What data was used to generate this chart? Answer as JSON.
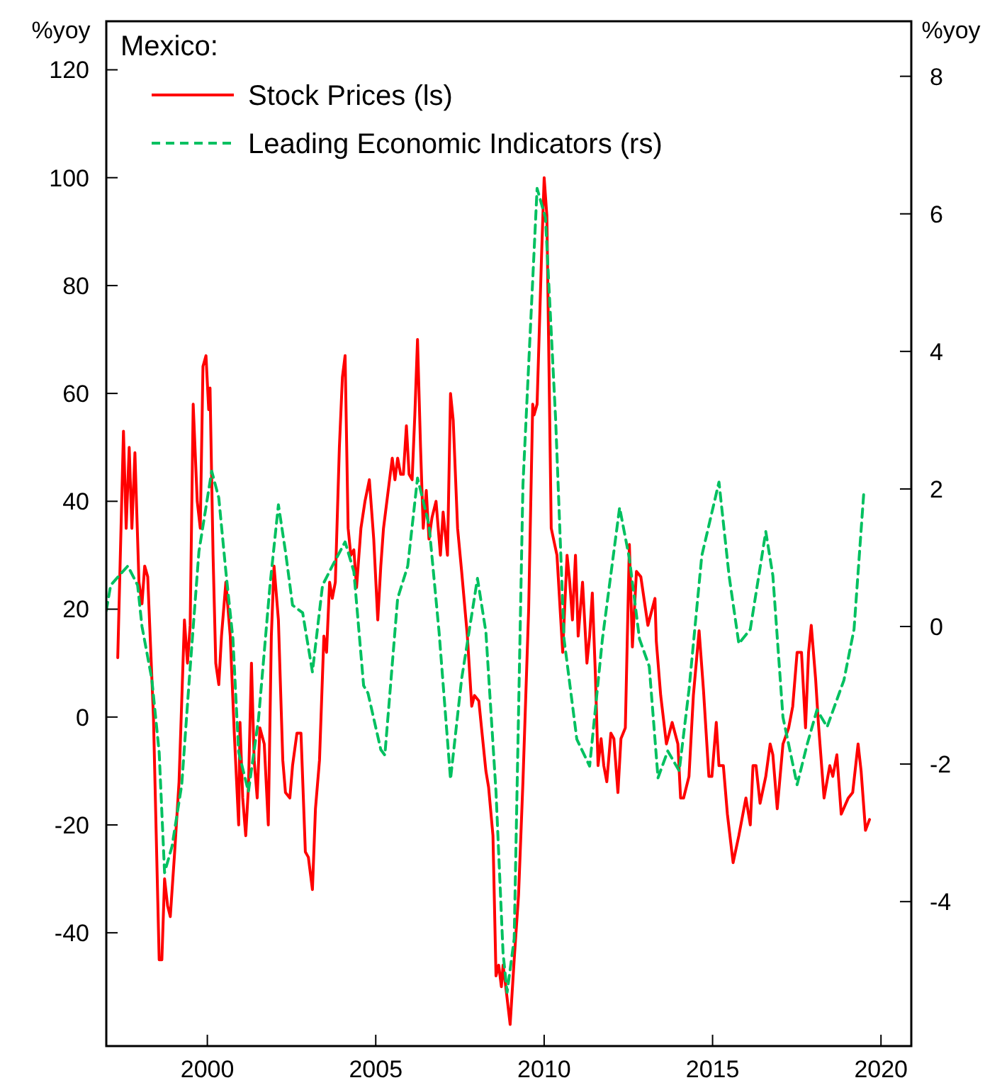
{
  "chart_data": {
    "type": "line",
    "ylabel": "%yoy",
    "y2label": "%yoy",
    "legend_title": "Mexico:",
    "legend": "top left",
    "xlim": [
      1997,
      2020.9
    ],
    "xticks": [
      2000,
      2005,
      2010,
      2015,
      2020
    ],
    "ylim": [
      -61,
      129
    ],
    "yticks": [
      -40,
      -20,
      0,
      20,
      40,
      60,
      80,
      100,
      120
    ],
    "y2lim": [
      -6.1,
      8.8
    ],
    "y2ticks": [
      -4,
      -2,
      0,
      2,
      4,
      6,
      8
    ],
    "series": [
      {
        "name": "Stock Prices (ls)",
        "color": "#ff0000",
        "line_style": "solid",
        "x": [
          1997.34,
          1997.51,
          1997.59,
          1997.68,
          1997.76,
          1997.85,
          1997.97,
          1998.06,
          1998.14,
          1998.23,
          1998.4,
          1998.57,
          1998.65,
          1998.73,
          1998.82,
          1998.9,
          1999.03,
          1999.16,
          1999.32,
          1999.41,
          1999.49,
          1999.58,
          1999.7,
          1999.79,
          1999.87,
          1999.96,
          2000.04,
          2000.08,
          2000.17,
          2000.25,
          2000.34,
          2000.42,
          2000.55,
          2000.68,
          2000.8,
          2000.93,
          2000.97,
          2001.05,
          2001.14,
          2001.22,
          2001.31,
          2001.39,
          2001.48,
          2001.56,
          2001.69,
          2001.81,
          2001.9,
          2001.98,
          2002.11,
          2002.24,
          2002.32,
          2002.45,
          2002.53,
          2002.66,
          2002.78,
          2002.91,
          2003,
          2003.12,
          2003.21,
          2003.33,
          2003.46,
          2003.54,
          2003.63,
          2003.71,
          2003.8,
          2003.92,
          2004.01,
          2004.09,
          2004.18,
          2004.26,
          2004.35,
          2004.43,
          2004.56,
          2004.68,
          2004.81,
          2004.94,
          2005.06,
          2005.15,
          2005.23,
          2005.49,
          2005.57,
          2005.65,
          2005.74,
          2005.82,
          2005.91,
          2005.99,
          2006.08,
          2006.16,
          2006.24,
          2006.33,
          2006.41,
          2006.5,
          2006.58,
          2006.67,
          2006.79,
          2006.92,
          2007,
          2007.13,
          2007.22,
          2007.3,
          2007.43,
          2007.55,
          2007.72,
          2007.85,
          2007.93,
          2008.06,
          2008.14,
          2008.27,
          2008.35,
          2008.48,
          2008.57,
          2008.65,
          2008.73,
          2008.78,
          2008.86,
          2008.99,
          2009.11,
          2009.24,
          2009.37,
          2009.54,
          2009.66,
          2009.7,
          2009.79,
          2009.92,
          2010,
          2010.08,
          2010.21,
          2010.38,
          2010.55,
          2010.68,
          2010.76,
          2010.84,
          2010.93,
          2011.01,
          2011.14,
          2011.27,
          2011.35,
          2011.43,
          2011.52,
          2011.6,
          2011.69,
          2011.77,
          2011.86,
          2011.98,
          2012.07,
          2012.19,
          2012.28,
          2012.41,
          2012.53,
          2012.62,
          2012.74,
          2012.87,
          2013.08,
          2013.29,
          2013.33,
          2013.46,
          2013.63,
          2013.8,
          2013.97,
          2014.05,
          2014.14,
          2014.3,
          2014.43,
          2014.6,
          2014.73,
          2014.89,
          2014.98,
          2015.11,
          2015.19,
          2015.32,
          2015.44,
          2015.61,
          2015.78,
          2015.99,
          2016.12,
          2016.2,
          2016.29,
          2016.41,
          2016.58,
          2016.71,
          2016.79,
          2016.92,
          2017.09,
          2017.26,
          2017.38,
          2017.51,
          2017.64,
          2017.76,
          2017.85,
          2017.93,
          2018.06,
          2018.14,
          2018.31,
          2018.48,
          2018.57,
          2018.69,
          2018.82,
          2019.03,
          2019.16,
          2019.32,
          2019.41,
          2019.54,
          2019.66
        ],
        "values": [
          11,
          53,
          35,
          50,
          35,
          49,
          25,
          21,
          28,
          26,
          0,
          -45,
          -45,
          -30,
          -35,
          -37,
          -25,
          -12,
          18,
          10,
          17,
          58,
          40,
          35,
          65,
          67,
          57,
          61,
          30,
          10,
          6,
          15,
          25,
          15,
          -3,
          -20,
          -1,
          -15,
          -22,
          -13,
          10,
          -8,
          -15,
          -2,
          -5,
          -20,
          15,
          28,
          18,
          -8,
          -14,
          -15,
          -9,
          -3,
          -3,
          -25,
          -26,
          -32,
          -17,
          -8,
          15,
          12,
          25,
          22,
          25,
          50,
          63,
          67,
          35,
          30,
          31,
          24,
          35,
          40,
          44,
          33,
          18,
          28,
          35,
          48,
          44,
          48,
          45,
          45,
          54,
          45,
          44,
          56,
          70,
          50,
          35,
          42,
          33,
          37,
          40,
          30,
          38,
          30,
          60,
          55,
          35,
          27,
          15,
          2,
          4,
          3,
          -2,
          -10,
          -13,
          -22,
          -48,
          -46,
          -50,
          -46,
          -50,
          -57,
          -45,
          -33,
          -12,
          20,
          58,
          56,
          58,
          85,
          100,
          93,
          35,
          30,
          12,
          30,
          25,
          18,
          30,
          15,
          25,
          10,
          15,
          23,
          8,
          -9,
          -4,
          -9,
          -12,
          -3,
          -4,
          -14,
          -4,
          -2,
          32,
          13,
          27,
          26,
          17,
          22,
          14,
          4,
          -5,
          -1,
          -5,
          -15,
          -15,
          -11,
          4,
          16,
          5,
          -11,
          -11,
          -1,
          -9,
          -9,
          -18,
          -27,
          -22,
          -15,
          -20,
          -9,
          -9,
          -16,
          -11,
          -5,
          -7,
          -17,
          -5,
          -2,
          2,
          12,
          12,
          -2,
          12,
          17,
          7,
          -1,
          -15,
          -9,
          -11,
          -7,
          -18,
          -15,
          -14,
          -5,
          -10,
          -21,
          -19
        ]
      },
      {
        "name": "Leading Economic Indicators (rs)",
        "color": "#00c060",
        "line_style": "dashed",
        "axis": "y2",
        "x": [
          1997,
          1997.13,
          1997.38,
          1997.64,
          1997.93,
          1998.06,
          1998.35,
          1998.57,
          1998.73,
          1998.95,
          1999.24,
          1999.45,
          1999.75,
          2000.13,
          2000.34,
          2000.55,
          2000.76,
          2000.93,
          2001.22,
          2001.52,
          2001.86,
          2002.11,
          2002.32,
          2002.53,
          2002.83,
          2003.12,
          2003.42,
          2003.71,
          2004.09,
          2004.35,
          2004.64,
          2004.77,
          2005.15,
          2005.27,
          2005.65,
          2005.95,
          2006.24,
          2006.58,
          2006.88,
          2007.22,
          2007.55,
          2008.02,
          2008.27,
          2008.57,
          2008.78,
          2008.9,
          2009.11,
          2009.37,
          2009.79,
          2010.04,
          2010.34,
          2010.59,
          2010.97,
          2011.35,
          2011.73,
          2012.24,
          2012.53,
          2012.83,
          2013.12,
          2013.38,
          2013.67,
          2014.01,
          2014.3,
          2014.68,
          2015.19,
          2015.49,
          2015.78,
          2016.12,
          2016.58,
          2016.79,
          2017.09,
          2017.51,
          2017.81,
          2018.1,
          2018.4,
          2018.9,
          2019.2,
          2019.49
        ],
        "values": [
          0.23,
          0.6,
          0.74,
          0.88,
          0.6,
          0,
          -0.76,
          -1.83,
          -3.58,
          -3.2,
          -2.3,
          -0.86,
          1.09,
          2.26,
          1.87,
          0.8,
          -0.18,
          -1.83,
          -2.4,
          -1.34,
          0.6,
          1.77,
          1.09,
          0.31,
          0.2,
          -0.66,
          0.6,
          0.88,
          1.23,
          0.8,
          -0.86,
          -0.97,
          -1.79,
          -1.87,
          0.41,
          0.88,
          2.16,
          1.48,
          -0.08,
          -2.22,
          -0.76,
          0.7,
          -0.08,
          -2.4,
          -4.75,
          -5.32,
          -4.54,
          2.06,
          6.37,
          5.94,
          3.02,
          -0.18,
          -1.64,
          -2.03,
          -0.18,
          1.73,
          0.99,
          -0.18,
          -0.58,
          -2.2,
          -1.81,
          -2.1,
          -0.92,
          1.03,
          2.1,
          0.74,
          -0.25,
          -0.04,
          1.38,
          0.74,
          -1.32,
          -2.3,
          -1.71,
          -1.21,
          -1.46,
          -0.78,
          -0.04,
          1.95
        ]
      }
    ]
  }
}
